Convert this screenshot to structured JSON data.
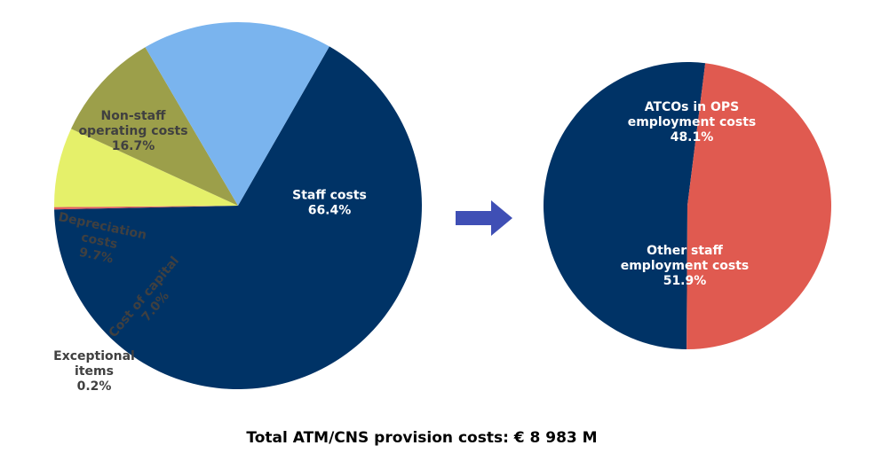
{
  "chart_data": [
    {
      "type": "pie",
      "slices": [
        {
          "label": [
            "Staff costs",
            "66.4%"
          ],
          "value": 66.4,
          "color": "#003366"
        },
        {
          "label": [
            "Exceptional",
            "items",
            "0.2%"
          ],
          "value": 0.2,
          "color": "#e06060"
        },
        {
          "label": [
            "Cost of capital",
            "7.0%"
          ],
          "value": 7.0,
          "color": "#e5f06a"
        },
        {
          "label": [
            "Depreciation",
            "costs",
            "9.7%"
          ],
          "value": 9.7,
          "color": "#9c9f4a"
        },
        {
          "label": [
            "Non-staff",
            "operating costs",
            "16.7%"
          ],
          "value": 16.7,
          "color": "#7ab4ee"
        }
      ]
    },
    {
      "type": "pie",
      "slices": [
        {
          "label": [
            "Other staff",
            "employment costs",
            "51.9%"
          ],
          "value": 51.9,
          "color": "#003366"
        },
        {
          "label": [
            "ATCOs in OPS",
            "employment costs",
            "48.1%"
          ],
          "value": 48.1,
          "color": "#e05a50"
        }
      ]
    }
  ],
  "arrow_icon": "right-arrow-icon",
  "total_label": "Total ATM/CNS provision costs: € 8 983 M"
}
